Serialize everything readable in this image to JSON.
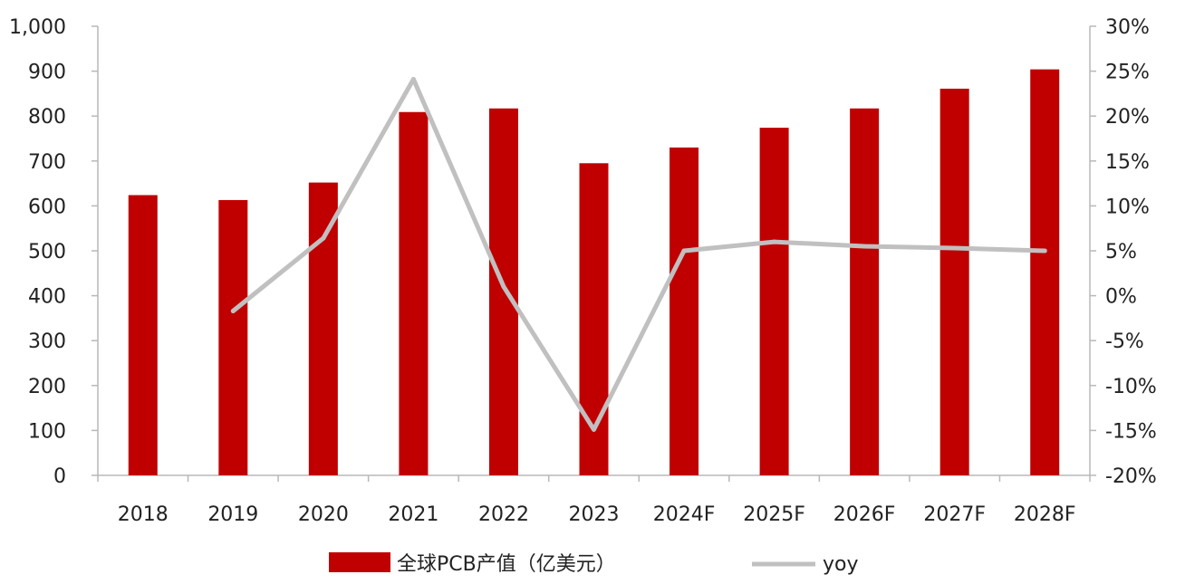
{
  "chart_data": {
    "type": "bar",
    "categories": [
      "2018",
      "2019",
      "2020",
      "2021",
      "2022",
      "2023",
      "2024F",
      "2025F",
      "2026F",
      "2027F",
      "2028F"
    ],
    "series": [
      {
        "name": "全球PCB产值（亿美元）",
        "type": "bar",
        "axis": "left",
        "color": "#c00000",
        "values": [
          624,
          613,
          652,
          809,
          817,
          695,
          730,
          774,
          817,
          861,
          904
        ]
      },
      {
        "name": "yoy",
        "type": "line",
        "axis": "right",
        "color": "#c0c0c0",
        "values": [
          null,
          -1.7,
          6.4,
          24.1,
          1.0,
          -14.9,
          5.0,
          6.0,
          5.5,
          5.3,
          5.0
        ]
      }
    ],
    "y_left": {
      "ylim": [
        0,
        1000
      ],
      "ticks": [
        "0",
        "100",
        "200",
        "300",
        "400",
        "500",
        "600",
        "700",
        "800",
        "900",
        "1,000"
      ]
    },
    "y_right": {
      "ylim": [
        -20,
        30
      ],
      "ticks": [
        "-20%",
        "-15%",
        "-10%",
        "-5%",
        "0%",
        "5%",
        "10%",
        "15%",
        "20%",
        "25%",
        "30%"
      ]
    },
    "title": "",
    "xlabel": "",
    "ylabel": "",
    "grid": false,
    "legend_position": "bottom"
  }
}
